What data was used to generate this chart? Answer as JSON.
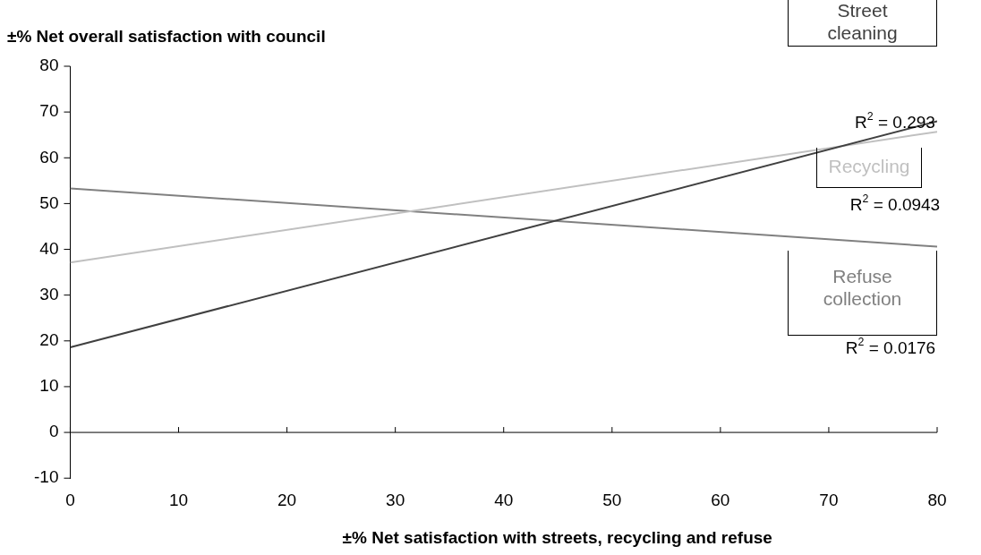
{
  "chart_data": {
    "type": "line",
    "xlabel": "±% Net satisfaction with streets, recycling and refuse",
    "ylabel": "±% Net overall satisfaction with council",
    "x": [
      0,
      80
    ],
    "xlim": [
      0,
      80
    ],
    "xticks": [
      0,
      10,
      20,
      30,
      40,
      50,
      60,
      70,
      80
    ],
    "ylim": [
      -10,
      80
    ],
    "yticks": [
      -10,
      0,
      10,
      20,
      30,
      40,
      50,
      60,
      70,
      80
    ],
    "grid": false,
    "legend": false,
    "marker": "none",
    "series": [
      {
        "name": "Street cleaning",
        "color": "#404040",
        "values": [
          18.6,
          68
        ]
      },
      {
        "name": "Recycling",
        "color": "#c0c0c0",
        "values": [
          37.1,
          65.7
        ]
      },
      {
        "name": "Refuse collection",
        "color": "#808080",
        "values": [
          53.3,
          40.6
        ]
      }
    ],
    "ref_lines": [
      {
        "axis": "y",
        "value": 0,
        "color": "#000000"
      }
    ],
    "annotations": [
      "R$^{2}$ = 0.293",
      "R$^{2}$ = 0.0943",
      "R$^{2}$ = 0.0176"
    ]
  }
}
